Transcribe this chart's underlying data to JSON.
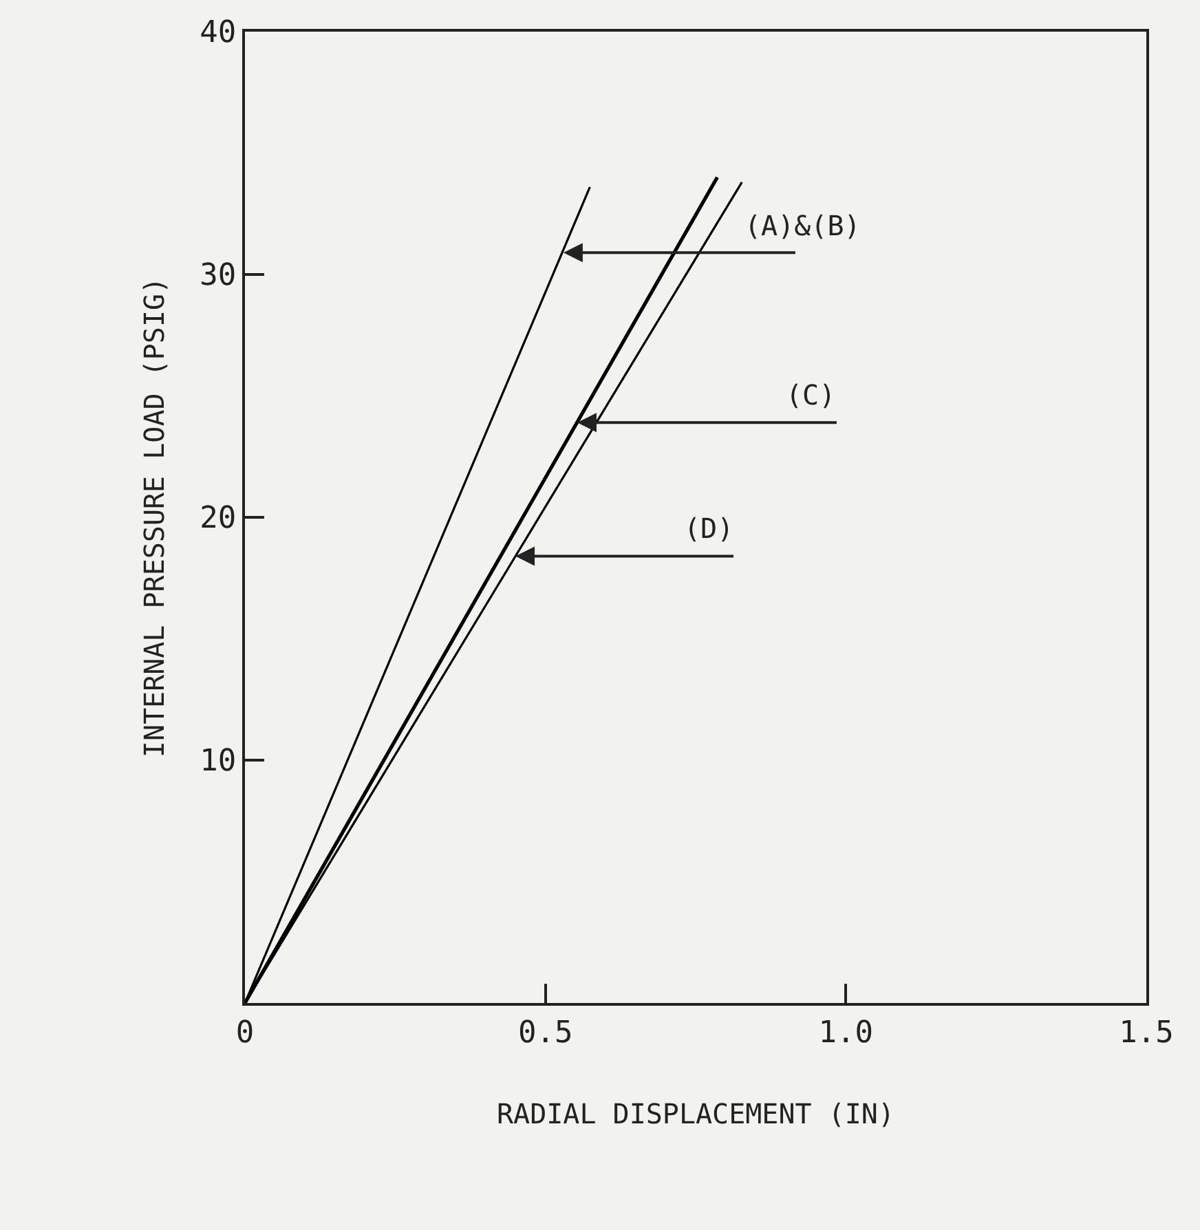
{
  "chart_data": {
    "type": "line",
    "xlabel": "RADIAL DISPLACEMENT (IN)",
    "ylabel": "INTERNAL PRESSURE LOAD (PSIG)",
    "series": [
      {
        "color": "#000000",
        "x": [
          0,
          0.574
        ],
        "values": [
          0,
          33.6
        ]
      },
      {
        "color": "#000000",
        "x": [
          0,
          0.786
        ],
        "values": [
          0,
          34.0
        ]
      },
      {
        "color": "#000000",
        "x": [
          0,
          0.827
        ],
        "values": [
          0,
          33.8
        ]
      }
    ],
    "annotations": [
      {
        "text": "(A)&(B)",
        "x": 0.53,
        "y": 30.9
      },
      {
        "text": "(C)",
        "x": 0.553,
        "y": 23.9
      },
      {
        "text": "(D)",
        "x": 0.45,
        "y": 18.4
      }
    ],
    "xlim": [
      0,
      1.5
    ],
    "xticks": [
      0,
      0.5,
      {
        "value": 1,
        "label": "1.0"
      },
      1.5
    ],
    "ylim": [
      0,
      40
    ],
    "yticks": [
      10,
      20,
      30,
      40
    ],
    "marker": "none",
    "line_style": "solid"
  }
}
